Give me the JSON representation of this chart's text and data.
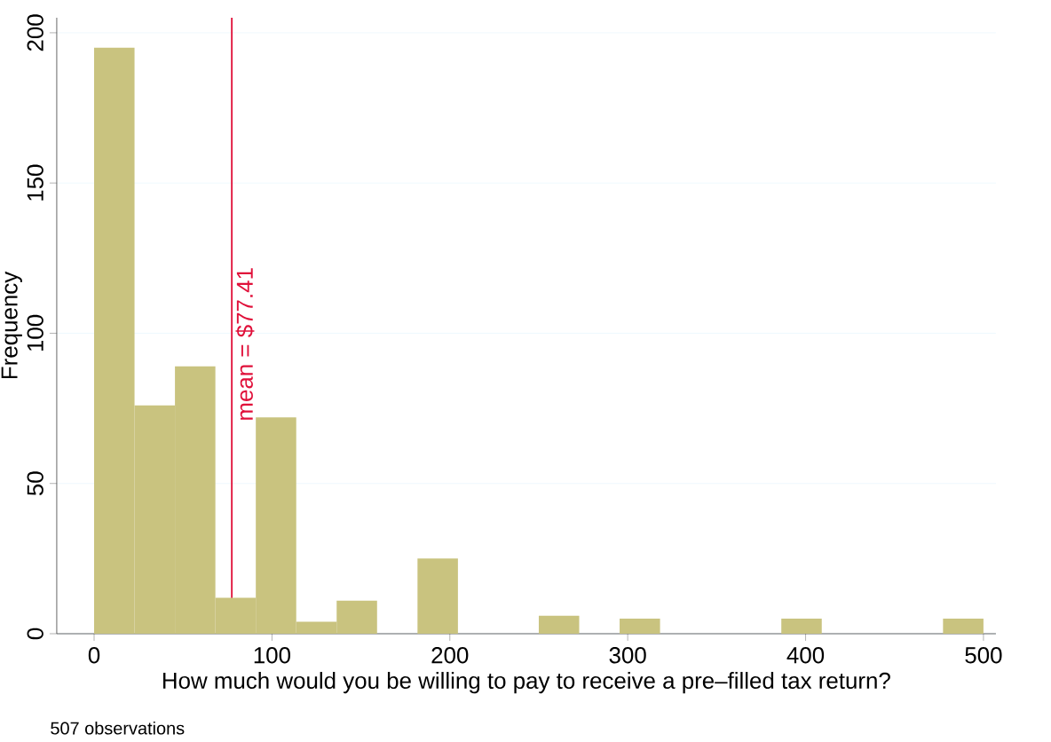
{
  "chart_data": {
    "type": "histogram",
    "xlabel": "How much would you be willing to pay to receive a pre–filled tax return?",
    "ylabel": "Frequency",
    "bins": [
      0,
      22.73,
      45.45,
      68.18,
      90.91,
      113.64,
      136.36,
      159.09,
      181.82,
      204.55,
      227.27,
      250,
      272.73,
      295.45,
      318.18,
      340.91,
      363.64,
      386.36,
      409.09,
      431.82,
      454.55,
      477.27,
      500
    ],
    "values": [
      195,
      76,
      89,
      12,
      72,
      4,
      11,
      0,
      25,
      0,
      0,
      6,
      0,
      5,
      0,
      0,
      0,
      5,
      0,
      0,
      0,
      5
    ],
    "color": "#c9c37f",
    "xlim": [
      -21,
      507
    ],
    "ylim": [
      0,
      205
    ],
    "xticks": [
      0,
      100,
      200,
      300,
      400,
      500
    ],
    "yticks": [
      0,
      50,
      100,
      150,
      200
    ],
    "grid": "y",
    "ref_lines": [
      {
        "axis": "x",
        "value": 77.41,
        "label": "mean = $77.41",
        "color": "#e0103a"
      }
    ],
    "annotations": [
      "507 observations"
    ]
  }
}
